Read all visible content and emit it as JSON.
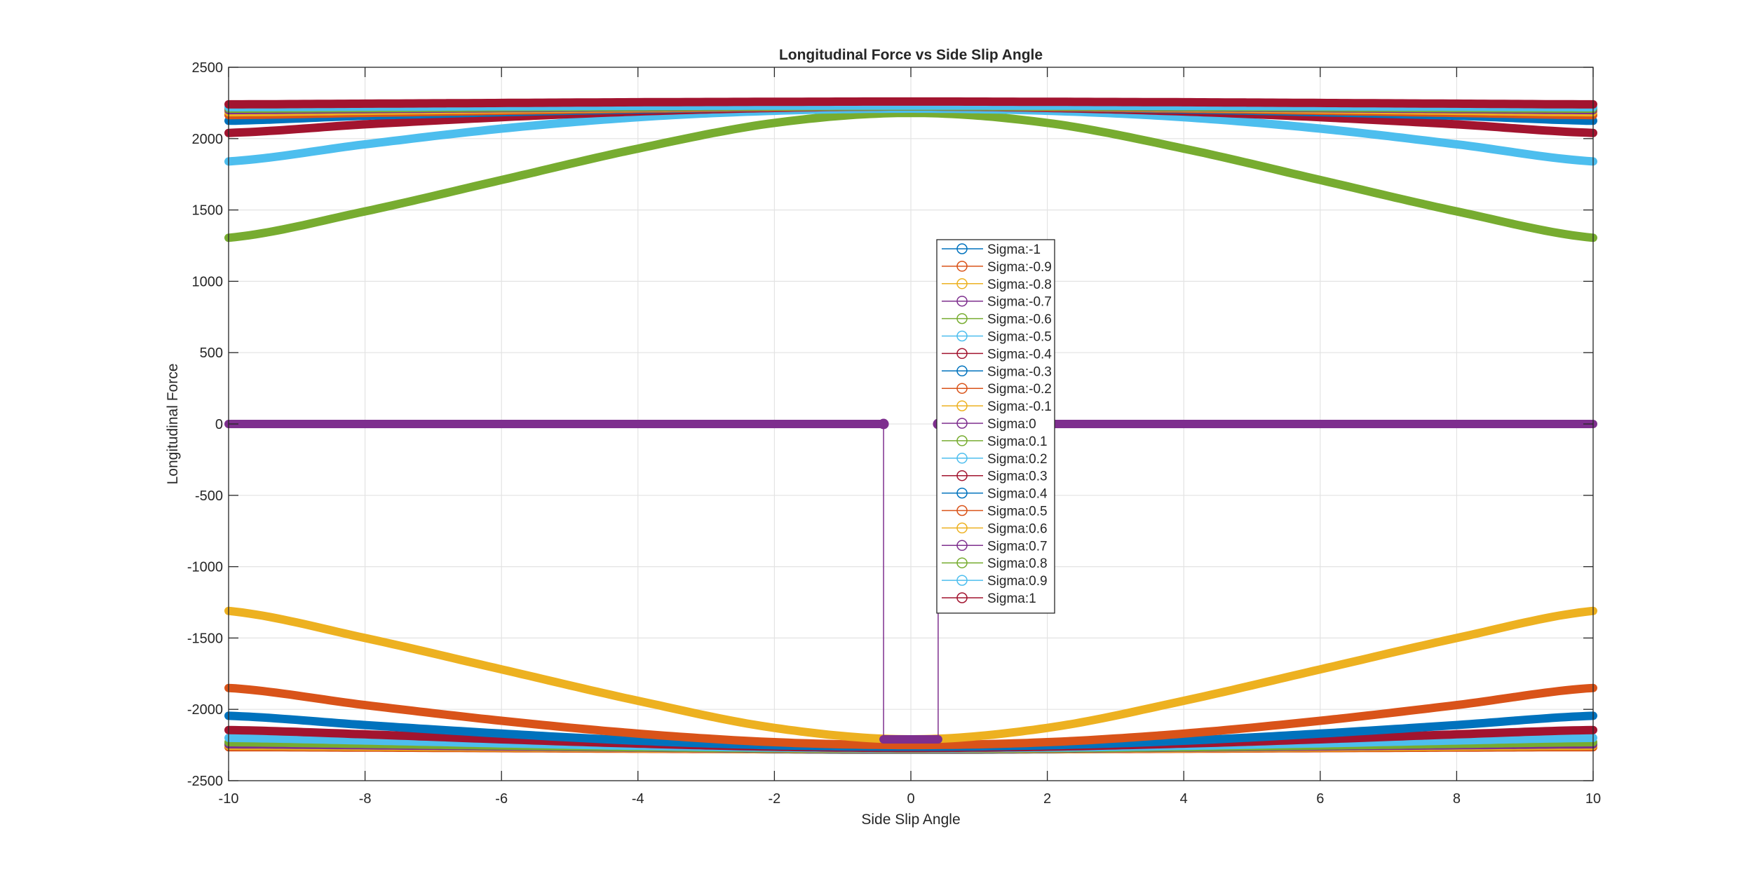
{
  "chart_data": {
    "type": "line",
    "title": "Longitudinal Force vs Side Slip Angle",
    "xlabel": "Side Slip Angle",
    "ylabel": "Longitudinal Force",
    "xlim": [
      -10,
      10
    ],
    "ylim": [
      -2500,
      2500
    ],
    "xticks": [
      "-10",
      "-8",
      "-6",
      "-4",
      "-2",
      "0",
      "2",
      "4",
      "6",
      "8",
      "10"
    ],
    "yticks": [
      "2500",
      "2000",
      "1500",
      "1000",
      "500",
      "0",
      "-500",
      "-1000",
      "-1500",
      "-2000",
      "-2500"
    ],
    "grid": true,
    "legend_position": "center",
    "x": [
      -10,
      -8,
      -6,
      -4,
      -2,
      0,
      2,
      4,
      6,
      8,
      10
    ],
    "series": [
      {
        "name": "Sigma:-1",
        "color": "#0072BD",
        "values": [
          -2240,
          -2250,
          -2262,
          -2272,
          -2280,
          -2283,
          -2280,
          -2272,
          -2262,
          -2250,
          -2240
        ]
      },
      {
        "name": "Sigma:-0.9",
        "color": "#D95319",
        "values": [
          -2265,
          -2268,
          -2272,
          -2276,
          -2279,
          -2280,
          -2279,
          -2276,
          -2272,
          -2268,
          -2265
        ]
      },
      {
        "name": "Sigma:-0.8",
        "color": "#EDB120",
        "values": [
          -2255,
          -2260,
          -2266,
          -2272,
          -2277,
          -2278,
          -2277,
          -2272,
          -2266,
          -2260,
          -2255
        ]
      },
      {
        "name": "Sigma:-0.7",
        "color": "#7E2F8E",
        "values": [
          -2245,
          -2252,
          -2260,
          -2268,
          -2275,
          -2277,
          -2275,
          -2268,
          -2260,
          -2252,
          -2245
        ]
      },
      {
        "name": "Sigma:-0.6",
        "color": "#77AC30",
        "values": [
          -2230,
          -2242,
          -2254,
          -2265,
          -2273,
          -2276,
          -2273,
          -2265,
          -2254,
          -2242,
          -2230
        ]
      },
      {
        "name": "Sigma:-0.5",
        "color": "#4DBEEE",
        "values": [
          -2200,
          -2218,
          -2238,
          -2256,
          -2268,
          -2273,
          -2268,
          -2256,
          -2238,
          -2218,
          -2200
        ]
      },
      {
        "name": "Sigma:-0.4",
        "color": "#A2142F",
        "values": [
          -2145,
          -2175,
          -2210,
          -2240,
          -2262,
          -2270,
          -2262,
          -2240,
          -2210,
          -2175,
          -2145
        ]
      },
      {
        "name": "Sigma:-0.3",
        "color": "#0072BD",
        "values": [
          -2045,
          -2110,
          -2170,
          -2220,
          -2252,
          -2262,
          -2252,
          -2220,
          -2170,
          -2110,
          -2045
        ]
      },
      {
        "name": "Sigma:-0.2",
        "color": "#D95319",
        "values": [
          -1850,
          -1970,
          -2080,
          -2170,
          -2230,
          -2250,
          -2230,
          -2170,
          -2080,
          -1970,
          -1850
        ]
      },
      {
        "name": "Sigma:-0.1",
        "color": "#EDB120",
        "values": [
          -1310,
          -1500,
          -1720,
          -1940,
          -2130,
          -2210,
          -2130,
          -1940,
          -1720,
          -1500,
          -1310
        ]
      },
      {
        "name": "Sigma:0",
        "color": "#7E2F8E",
        "values": [
          0,
          0,
          0,
          0,
          0,
          0,
          0,
          0,
          0,
          0,
          0
        ]
      },
      {
        "name": "Sigma:0.1",
        "color": "#77AC30",
        "values": [
          1305,
          1490,
          1710,
          1930,
          2110,
          2180,
          2110,
          1930,
          1710,
          1490,
          1305
        ]
      },
      {
        "name": "Sigma:0.2",
        "color": "#4DBEEE",
        "values": [
          1840,
          1960,
          2070,
          2150,
          2195,
          2210,
          2195,
          2150,
          2070,
          1960,
          1840
        ]
      },
      {
        "name": "Sigma:0.3",
        "color": "#A2142F",
        "values": [
          2040,
          2100,
          2150,
          2190,
          2215,
          2225,
          2215,
          2190,
          2150,
          2100,
          2040
        ]
      },
      {
        "name": "Sigma:0.4",
        "color": "#0072BD",
        "values": [
          2125,
          2160,
          2185,
          2205,
          2220,
          2225,
          2220,
          2205,
          2185,
          2160,
          2125
        ]
      },
      {
        "name": "Sigma:0.5",
        "color": "#D95319",
        "values": [
          2165,
          2180,
          2195,
          2210,
          2220,
          2225,
          2220,
          2210,
          2195,
          2180,
          2165
        ]
      },
      {
        "name": "Sigma:0.6",
        "color": "#EDB120",
        "values": [
          2185,
          2195,
          2205,
          2215,
          2222,
          2225,
          2222,
          2215,
          2205,
          2195,
          2185
        ]
      },
      {
        "name": "Sigma:0.7",
        "color": "#7E2F8E",
        "values": [
          2200,
          2207,
          2213,
          2219,
          2223,
          2225,
          2223,
          2219,
          2213,
          2207,
          2200
        ]
      },
      {
        "name": "Sigma:0.8",
        "color": "#77AC30",
        "values": [
          2210,
          2214,
          2218,
          2222,
          2225,
          2226,
          2225,
          2222,
          2218,
          2214,
          2210
        ]
      },
      {
        "name": "Sigma:0.9",
        "color": "#4DBEEE",
        "values": [
          2220,
          2223,
          2226,
          2229,
          2231,
          2232,
          2231,
          2229,
          2226,
          2223,
          2220
        ]
      },
      {
        "name": "Sigma:1",
        "color": "#A2142F",
        "values": [
          2240,
          2245,
          2250,
          2255,
          2258,
          2260,
          2258,
          2255,
          2250,
          2245,
          2240
        ]
      }
    ],
    "sigma0_notch": {
      "x_from": -0.4,
      "x_to": 0.4,
      "y_bottom": -2210
    }
  }
}
